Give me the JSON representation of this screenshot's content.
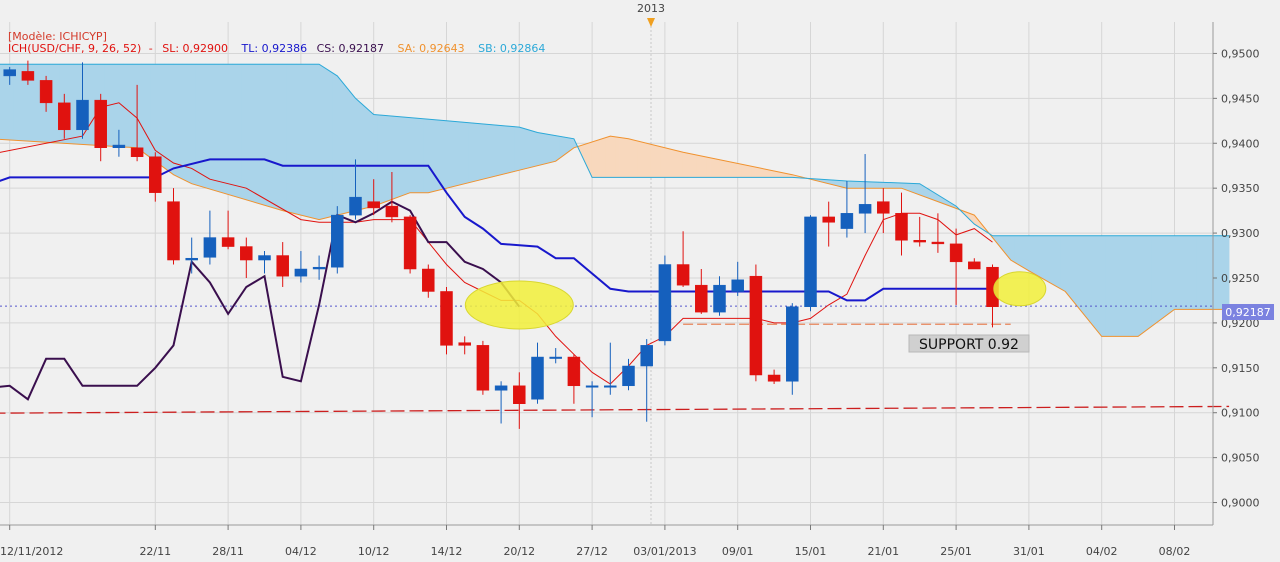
{
  "chart_data": {
    "type": "candlestick",
    "top_label": "2013",
    "model_label": "[Modèle: ICHICYP]",
    "indicator": {
      "name": "ICH(USD/CHF, 9, 26, 52)",
      "sl": "SL: 0,92900",
      "tl": "TL: 0,92386",
      "cs": "CS: 0,92187",
      "sa": "SA: 0,92643",
      "sb": "SB: 0,92864",
      "separator": "-"
    },
    "current_price_label": "0,92187",
    "current_price": 0.92187,
    "annotation": "SUPPORT 0.92",
    "ylim": [
      0.8975,
      0.9535
    ],
    "yticks": [
      {
        "value": 0.95,
        "label": "0,9500"
      },
      {
        "value": 0.945,
        "label": "0,9450"
      },
      {
        "value": 0.94,
        "label": "0,9400"
      },
      {
        "value": 0.935,
        "label": "0,9350"
      },
      {
        "value": 0.93,
        "label": "0,9300"
      },
      {
        "value": 0.925,
        "label": "0,9250"
      },
      {
        "value": 0.92,
        "label": "0,9200"
      },
      {
        "value": 0.915,
        "label": "0,9150"
      },
      {
        "value": 0.91,
        "label": "0,9100"
      },
      {
        "value": 0.905,
        "label": "0,9050"
      },
      {
        "value": 0.9,
        "label": "0,9000"
      }
    ],
    "xlabels": [
      {
        "i": 0,
        "label": "12/11/2012"
      },
      {
        "i": 8,
        "label": "22/11"
      },
      {
        "i": 12,
        "label": "28/11"
      },
      {
        "i": 16,
        "label": "04/12"
      },
      {
        "i": 20,
        "label": "10/12"
      },
      {
        "i": 24,
        "label": "14/12"
      },
      {
        "i": 28,
        "label": "20/12"
      },
      {
        "i": 32,
        "label": "27/12"
      },
      {
        "i": 36,
        "label": "03/01/2013"
      },
      {
        "i": 40,
        "label": "09/01"
      },
      {
        "i": 44,
        "label": "15/01"
      },
      {
        "i": 48,
        "label": "21/01"
      },
      {
        "i": 52,
        "label": "25/01"
      },
      {
        "i": 56,
        "label": "31/01"
      },
      {
        "i": 60,
        "label": "04/02"
      },
      {
        "i": 64,
        "label": "08/02"
      }
    ],
    "candles": [
      {
        "o": 0.9475,
        "h": 0.9485,
        "l": 0.9465,
        "c": 0.9482
      },
      {
        "o": 0.948,
        "h": 0.9492,
        "l": 0.9465,
        "c": 0.947
      },
      {
        "o": 0.947,
        "h": 0.9475,
        "l": 0.9435,
        "c": 0.9445
      },
      {
        "o": 0.9445,
        "h": 0.9455,
        "l": 0.9405,
        "c": 0.9415
      },
      {
        "o": 0.9415,
        "h": 0.949,
        "l": 0.9405,
        "c": 0.9448
      },
      {
        "o": 0.9448,
        "h": 0.9455,
        "l": 0.938,
        "c": 0.9395
      },
      {
        "o": 0.9395,
        "h": 0.9415,
        "l": 0.9385,
        "c": 0.9398
      },
      {
        "o": 0.9395,
        "h": 0.9465,
        "l": 0.938,
        "c": 0.9385
      },
      {
        "o": 0.9385,
        "h": 0.939,
        "l": 0.9335,
        "c": 0.9345
      },
      {
        "o": 0.9335,
        "h": 0.935,
        "l": 0.9265,
        "c": 0.927
      },
      {
        "o": 0.927,
        "h": 0.9295,
        "l": 0.9255,
        "c": 0.9272
      },
      {
        "o": 0.9273,
        "h": 0.9325,
        "l": 0.9265,
        "c": 0.9295
      },
      {
        "o": 0.9295,
        "h": 0.9325,
        "l": 0.9282,
        "c": 0.9285
      },
      {
        "o": 0.9285,
        "h": 0.9295,
        "l": 0.925,
        "c": 0.927
      },
      {
        "o": 0.927,
        "h": 0.928,
        "l": 0.9255,
        "c": 0.9275
      },
      {
        "o": 0.9275,
        "h": 0.929,
        "l": 0.924,
        "c": 0.9252
      },
      {
        "o": 0.9252,
        "h": 0.928,
        "l": 0.9245,
        "c": 0.926
      },
      {
        "o": 0.926,
        "h": 0.9275,
        "l": 0.9248,
        "c": 0.9262
      },
      {
        "o": 0.9262,
        "h": 0.933,
        "l": 0.9255,
        "c": 0.932
      },
      {
        "o": 0.932,
        "h": 0.9382,
        "l": 0.9315,
        "c": 0.934
      },
      {
        "o": 0.9335,
        "h": 0.936,
        "l": 0.932,
        "c": 0.9328
      },
      {
        "o": 0.933,
        "h": 0.9368,
        "l": 0.9312,
        "c": 0.9318
      },
      {
        "o": 0.9318,
        "h": 0.932,
        "l": 0.9255,
        "c": 0.926
      },
      {
        "o": 0.926,
        "h": 0.9265,
        "l": 0.9228,
        "c": 0.9235
      },
      {
        "o": 0.9235,
        "h": 0.924,
        "l": 0.9165,
        "c": 0.9175
      },
      {
        "o": 0.9178,
        "h": 0.9185,
        "l": 0.9165,
        "c": 0.9175
      },
      {
        "o": 0.9175,
        "h": 0.918,
        "l": 0.912,
        "c": 0.9125
      },
      {
        "o": 0.9125,
        "h": 0.9135,
        "l": 0.9088,
        "c": 0.913
      },
      {
        "o": 0.913,
        "h": 0.9145,
        "l": 0.9082,
        "c": 0.911
      },
      {
        "o": 0.9115,
        "h": 0.9178,
        "l": 0.911,
        "c": 0.9162
      },
      {
        "o": 0.9162,
        "h": 0.9172,
        "l": 0.9155,
        "c": 0.9162
      },
      {
        "o": 0.9162,
        "h": 0.9165,
        "l": 0.911,
        "c": 0.913
      },
      {
        "o": 0.913,
        "h": 0.9135,
        "l": 0.9095,
        "c": 0.913
      },
      {
        "o": 0.913,
        "h": 0.9178,
        "l": 0.912,
        "c": 0.913
      },
      {
        "o": 0.913,
        "h": 0.916,
        "l": 0.9125,
        "c": 0.9152
      },
      {
        "o": 0.9152,
        "h": 0.9182,
        "l": 0.909,
        "c": 0.9175
      },
      {
        "o": 0.918,
        "h": 0.9275,
        "l": 0.9175,
        "c": 0.9265
      },
      {
        "o": 0.9265,
        "h": 0.9302,
        "l": 0.924,
        "c": 0.9242
      },
      {
        "o": 0.9242,
        "h": 0.926,
        "l": 0.921,
        "c": 0.9212
      },
      {
        "o": 0.9212,
        "h": 0.9252,
        "l": 0.9208,
        "c": 0.9242
      },
      {
        "o": 0.9235,
        "h": 0.9268,
        "l": 0.923,
        "c": 0.9248
      },
      {
        "o": 0.9252,
        "h": 0.9265,
        "l": 0.9135,
        "c": 0.9142
      },
      {
        "o": 0.9142,
        "h": 0.9148,
        "l": 0.9132,
        "c": 0.9135
      },
      {
        "o": 0.9135,
        "h": 0.9222,
        "l": 0.912,
        "c": 0.9218
      },
      {
        "o": 0.9218,
        "h": 0.932,
        "l": 0.9213,
        "c": 0.9318
      },
      {
        "o": 0.9318,
        "h": 0.9335,
        "l": 0.9285,
        "c": 0.9312
      },
      {
        "o": 0.9305,
        "h": 0.9358,
        "l": 0.9295,
        "c": 0.9322
      },
      {
        "o": 0.9322,
        "h": 0.9388,
        "l": 0.93,
        "c": 0.9332
      },
      {
        "o": 0.9335,
        "h": 0.935,
        "l": 0.93,
        "c": 0.9322
      },
      {
        "o": 0.9322,
        "h": 0.9345,
        "l": 0.9275,
        "c": 0.9292
      },
      {
        "o": 0.9292,
        "h": 0.9318,
        "l": 0.9285,
        "c": 0.929
      },
      {
        "o": 0.929,
        "h": 0.9322,
        "l": 0.9278,
        "c": 0.9288
      },
      {
        "o": 0.9288,
        "h": 0.9305,
        "l": 0.922,
        "c": 0.9268
      },
      {
        "o": 0.9268,
        "h": 0.9272,
        "l": 0.9262,
        "c": 0.926
      },
      {
        "o": 0.9262,
        "h": 0.9265,
        "l": 0.9195,
        "c": 0.9218
      }
    ],
    "series": [
      {
        "key": "ssa",
        "values": [
          [
            -1,
            0.9405
          ],
          [
            7,
            0.9395
          ],
          [
            9,
            0.9365
          ],
          [
            10,
            0.9355
          ],
          [
            15,
            0.9325
          ],
          [
            17,
            0.9315
          ],
          [
            19,
            0.9325
          ],
          [
            20,
            0.933
          ],
          [
            22,
            0.9345
          ],
          [
            23,
            0.9345
          ],
          [
            26,
            0.936
          ],
          [
            28,
            0.937
          ],
          [
            30,
            0.938
          ],
          [
            31,
            0.9395
          ],
          [
            33,
            0.9408
          ],
          [
            34,
            0.9405
          ],
          [
            37,
            0.939
          ],
          [
            43,
            0.9365
          ],
          [
            46,
            0.935
          ],
          [
            49,
            0.935
          ],
          [
            51,
            0.9335
          ],
          [
            53,
            0.932
          ],
          [
            55,
            0.927
          ],
          [
            56,
            0.9258
          ],
          [
            58,
            0.9235
          ],
          [
            60,
            0.9185
          ],
          [
            62,
            0.9185
          ],
          [
            64,
            0.9215
          ],
          [
            67,
            0.9215
          ]
        ]
      },
      {
        "key": "ssb",
        "values": [
          [
            -1,
            0.9488
          ],
          [
            7,
            0.9488
          ],
          [
            17,
            0.9488
          ],
          [
            18,
            0.9475
          ],
          [
            19,
            0.945
          ],
          [
            20,
            0.9432
          ],
          [
            24,
            0.9425
          ],
          [
            28,
            0.9418
          ],
          [
            29,
            0.9412
          ],
          [
            31,
            0.9405
          ],
          [
            32,
            0.9362
          ],
          [
            36,
            0.9362
          ],
          [
            43,
            0.9362
          ],
          [
            46,
            0.9358
          ],
          [
            50,
            0.9355
          ],
          [
            52,
            0.933
          ],
          [
            53,
            0.931
          ],
          [
            54,
            0.9297
          ],
          [
            67,
            0.9297
          ]
        ]
      },
      {
        "key": "tenkan",
        "values": [
          [
            -1,
            0.9388
          ],
          [
            4,
            0.9408
          ],
          [
            5,
            0.944
          ],
          [
            6,
            0.9445
          ],
          [
            7,
            0.9428
          ],
          [
            8,
            0.9392
          ],
          [
            9,
            0.9378
          ],
          [
            10,
            0.9372
          ],
          [
            11,
            0.936
          ],
          [
            12,
            0.9355
          ],
          [
            13,
            0.935
          ],
          [
            16,
            0.9315
          ],
          [
            17,
            0.9312
          ],
          [
            19,
            0.9312
          ],
          [
            20,
            0.9315
          ],
          [
            22,
            0.9315
          ],
          [
            24,
            0.9265
          ],
          [
            25,
            0.9245
          ],
          [
            26,
            0.9235
          ],
          [
            27,
            0.9225
          ],
          [
            28,
            0.9225
          ],
          [
            29,
            0.921
          ],
          [
            30,
            0.9185
          ],
          [
            31,
            0.9165
          ],
          [
            32,
            0.9145
          ],
          [
            33,
            0.9132
          ],
          [
            34,
            0.9152
          ],
          [
            35,
            0.9175
          ],
          [
            36,
            0.9185
          ],
          [
            37,
            0.9205
          ],
          [
            38,
            0.9205
          ],
          [
            41,
            0.9205
          ],
          [
            42,
            0.92
          ],
          [
            43,
            0.92
          ],
          [
            44,
            0.9205
          ],
          [
            45,
            0.922
          ],
          [
            46,
            0.9232
          ],
          [
            47,
            0.9275
          ],
          [
            48,
            0.9315
          ],
          [
            49,
            0.9322
          ],
          [
            50,
            0.9322
          ],
          [
            51,
            0.9315
          ],
          [
            52,
            0.9298
          ],
          [
            53,
            0.9305
          ],
          [
            54,
            0.929
          ]
        ]
      },
      {
        "key": "kijun",
        "values": [
          [
            -1,
            0.9355
          ],
          [
            0,
            0.9362
          ],
          [
            7,
            0.9362
          ],
          [
            8,
            0.9362
          ],
          [
            9,
            0.9372
          ],
          [
            11,
            0.9382
          ],
          [
            14,
            0.9382
          ],
          [
            15,
            0.9375
          ],
          [
            23,
            0.9375
          ],
          [
            24,
            0.9345
          ],
          [
            25,
            0.9318
          ],
          [
            26,
            0.9305
          ],
          [
            27,
            0.9288
          ],
          [
            29,
            0.9285
          ],
          [
            30,
            0.9272
          ],
          [
            31,
            0.9272
          ],
          [
            33,
            0.9238
          ],
          [
            34,
            0.9235
          ],
          [
            45,
            0.9235
          ],
          [
            46,
            0.9225
          ],
          [
            47,
            0.9225
          ],
          [
            48,
            0.9238
          ],
          [
            53,
            0.9238
          ],
          [
            54,
            0.9238
          ]
        ]
      },
      {
        "key": "chikou",
        "values": [
          [
            -1,
            0.9128
          ],
          [
            0,
            0.913
          ],
          [
            1,
            0.9115
          ],
          [
            2,
            0.916
          ],
          [
            3,
            0.916
          ],
          [
            4,
            0.913
          ],
          [
            6,
            0.913
          ],
          [
            7,
            0.913
          ],
          [
            8,
            0.915
          ],
          [
            9,
            0.9175
          ],
          [
            10,
            0.9268
          ],
          [
            11,
            0.9245
          ],
          [
            12,
            0.921
          ],
          [
            13,
            0.924
          ],
          [
            14,
            0.9252
          ],
          [
            15,
            0.914
          ],
          [
            16,
            0.9135
          ],
          [
            17,
            0.922
          ],
          [
            18,
            0.932
          ],
          [
            19,
            0.9312
          ],
          [
            20,
            0.9322
          ],
          [
            21,
            0.9335
          ],
          [
            22,
            0.9325
          ],
          [
            23,
            0.929
          ],
          [
            24,
            0.929
          ],
          [
            25,
            0.9268
          ],
          [
            26,
            0.926
          ],
          [
            27,
            0.9245
          ],
          [
            28,
            0.9218
          ]
        ]
      }
    ],
    "support_line": {
      "start_i": 37,
      "end_i": 55,
      "value": 0.91985
    },
    "long_dashed_line": {
      "start_i": -1,
      "end_i": 67,
      "start_value": 0.90995,
      "end_value": 0.9107
    },
    "current_price_line": {
      "value": 0.92187
    },
    "highlight_circles": [
      {
        "i": 28,
        "value": 0.922
      },
      {
        "i": 55.5,
        "value": 0.9238
      }
    ],
    "colors": {
      "background": "#f0f0f0",
      "grid": "#d6d6d6",
      "bull": "#1560bd",
      "bear": "#e0120f",
      "cloud_bull": "#f8d8bd",
      "cloud_bear": "#aad4ea",
      "ssa": "#f0922f",
      "ssb": "#2ca9d8",
      "tenkan": "#e0120f",
      "kijun": "#1818cc",
      "chikou": "#3a0f4e",
      "support": "#e8845a",
      "long_dashed": "#cc1e1e",
      "current_price": "#5557cc",
      "highlight": "#f2f03a"
    },
    "grid": true
  }
}
